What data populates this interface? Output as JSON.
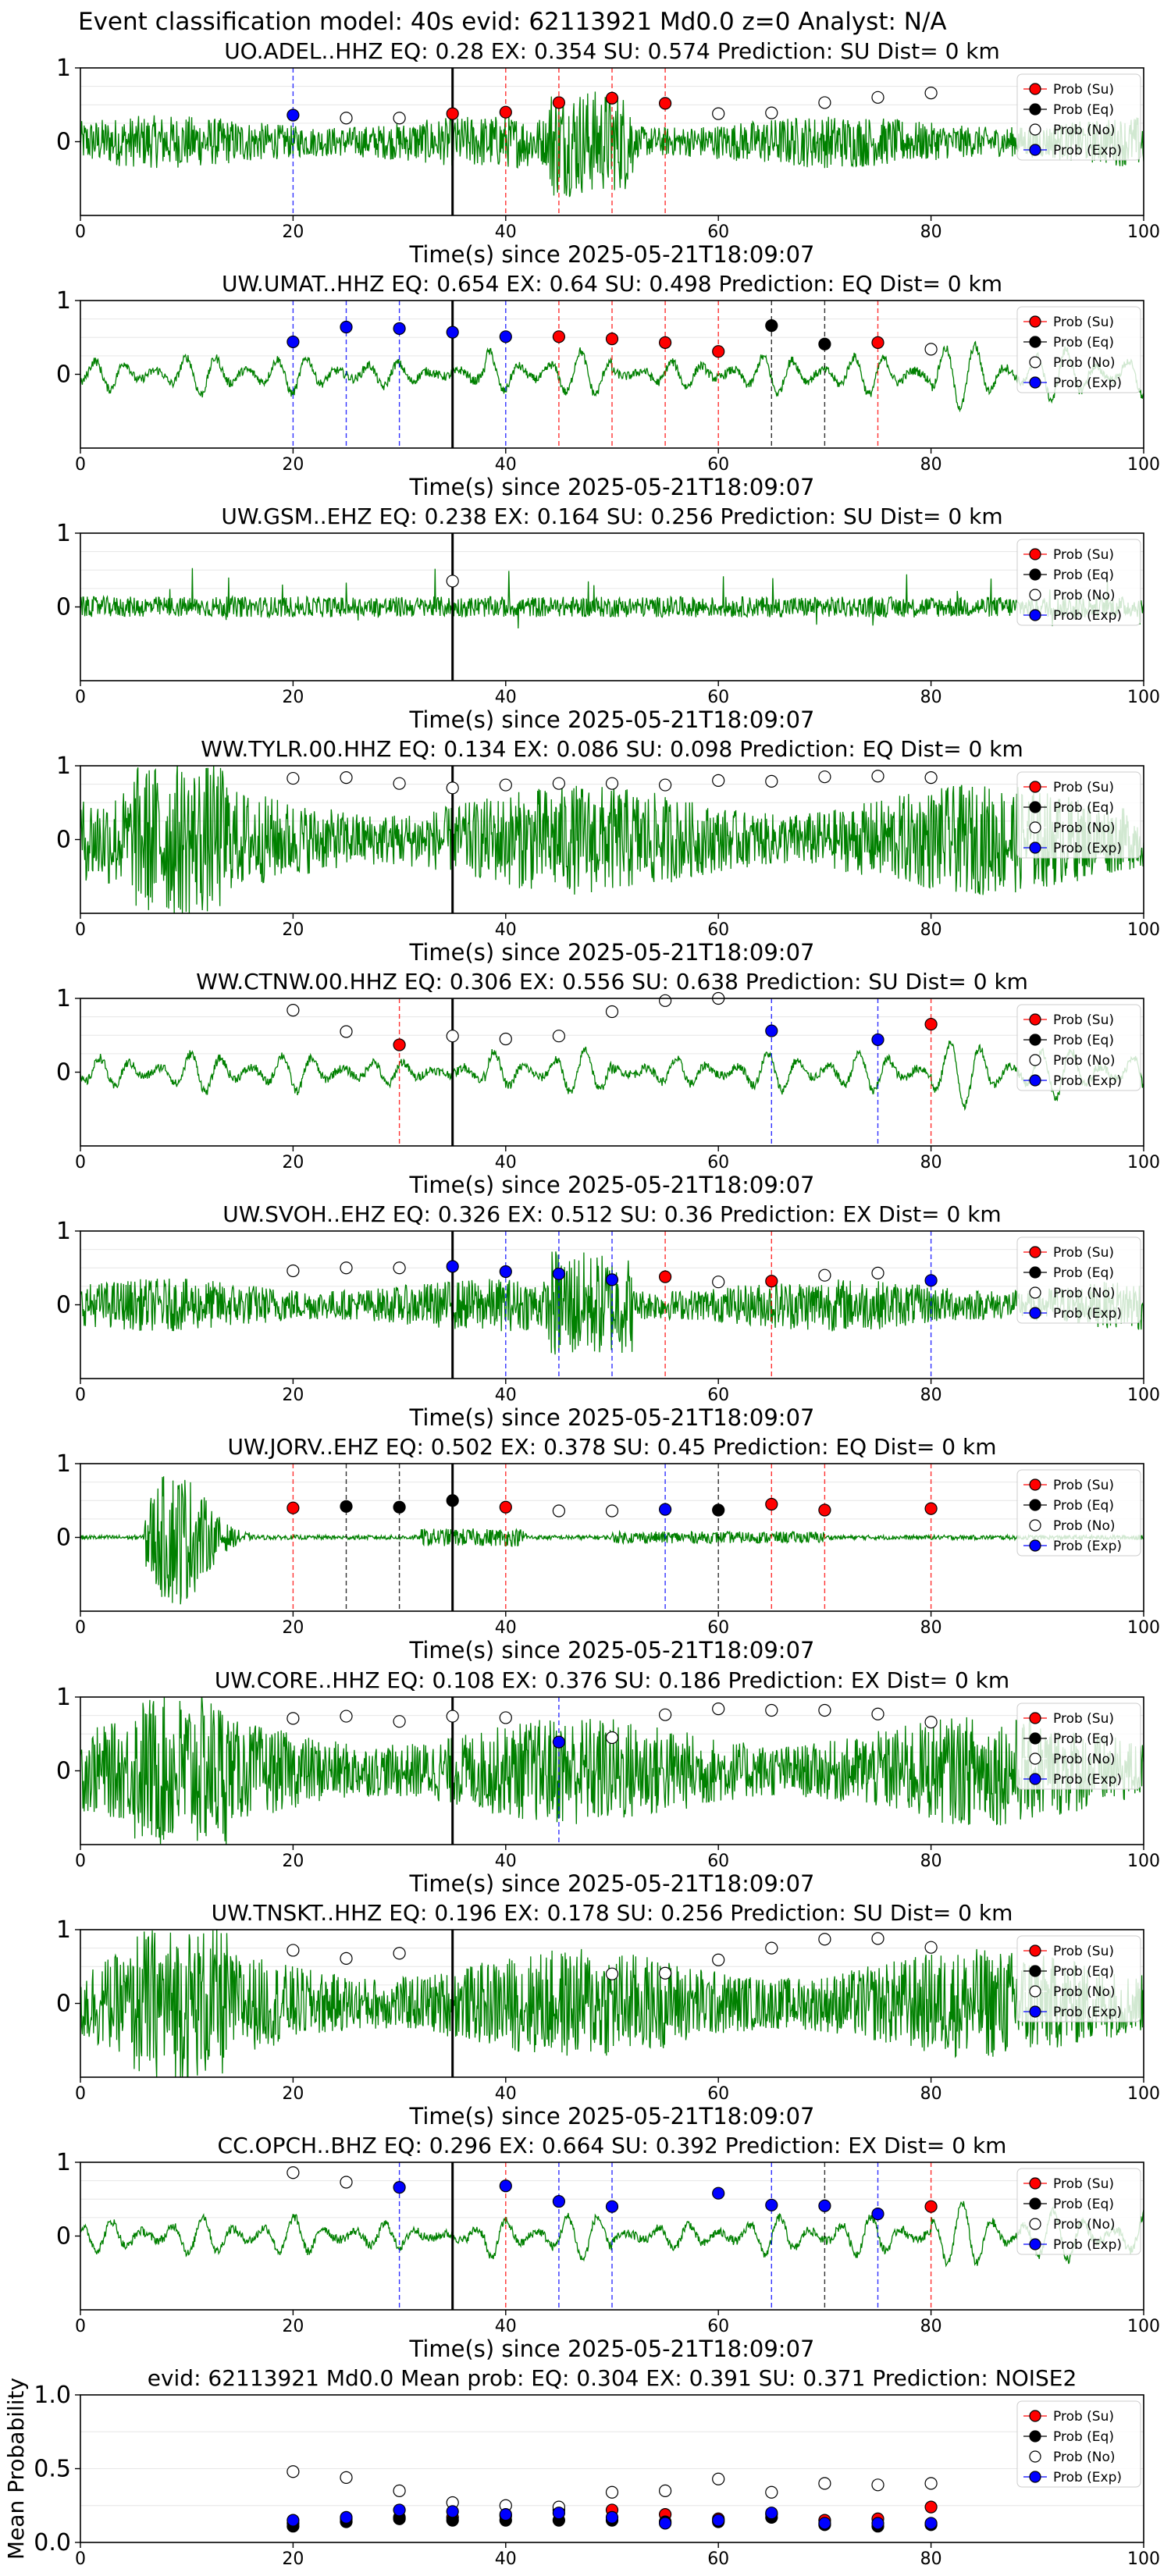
{
  "figure": {
    "suptitle": "Event classification model: 40s evid: 62113921 Md0.0 z=0 Analyst: N/A",
    "xlabel": "Time(s) since 2025-05-21T18:09:07"
  },
  "legend_labels": [
    "Prob (Su)",
    "Prob (Eq)",
    "Prob (No)",
    "Prob (Exp)"
  ],
  "colors": {
    "Su": "#ff0000",
    "Eq": "#000000",
    "No": "#ffffff",
    "Exp": "#0000ff",
    "waveform": "#008000",
    "vline_su": "#ff0000",
    "vline_eq": "#000000",
    "vline_exp": "#0000ff",
    "event_line": "#000000"
  },
  "chart_data": [
    {
      "type": "line",
      "title": "UO.ADEL..HHZ   EQ: 0.28  EX: 0.354  SU: 0.574   Prediction: SU    Dist= 0 km",
      "xlim": [
        0,
        100
      ],
      "ylim": [
        -1,
        1
      ],
      "xticks": [
        "0",
        "20",
        "40",
        "60",
        "80",
        "100"
      ],
      "yticks": [
        "1",
        "0"
      ],
      "event_time": 35,
      "waveform_style": "dense",
      "points": [
        [
          20,
          "Exp",
          0.36
        ],
        [
          25,
          "No",
          0.32
        ],
        [
          30,
          "No",
          0.32
        ],
        [
          35,
          "Su",
          0.38
        ],
        [
          40,
          "Su",
          0.4
        ],
        [
          45,
          "Su",
          0.53
        ],
        [
          50,
          "Su",
          0.59
        ],
        [
          55,
          "Su",
          0.52
        ],
        [
          60,
          "No",
          0.38
        ],
        [
          65,
          "No",
          0.39
        ],
        [
          70,
          "No",
          0.53
        ],
        [
          75,
          "No",
          0.6
        ],
        [
          80,
          "No",
          0.66
        ]
      ],
      "vlines": [
        [
          20,
          "Exp"
        ],
        [
          40,
          "Su"
        ],
        [
          45,
          "Su"
        ],
        [
          50,
          "Su"
        ],
        [
          55,
          "Su"
        ]
      ]
    },
    {
      "type": "line",
      "title": "UW.UMAT..HHZ   EQ: 0.654  EX: 0.64  SU: 0.498   Prediction: EQ    Dist= 0 km",
      "xlim": [
        0,
        100
      ],
      "ylim": [
        -1,
        1
      ],
      "xticks": [
        "0",
        "20",
        "40",
        "60",
        "80",
        "100"
      ],
      "yticks": [
        "1",
        "0"
      ],
      "event_time": 35,
      "waveform_style": "smooth",
      "points": [
        [
          20,
          "Exp",
          0.44
        ],
        [
          25,
          "Exp",
          0.64
        ],
        [
          30,
          "Exp",
          0.62
        ],
        [
          35,
          "Exp",
          0.57
        ],
        [
          40,
          "Exp",
          0.51
        ],
        [
          45,
          "Su",
          0.51
        ],
        [
          50,
          "Su",
          0.48
        ],
        [
          55,
          "Su",
          0.43
        ],
        [
          60,
          "Su",
          0.31
        ],
        [
          65,
          "Eq",
          0.66
        ],
        [
          70,
          "Eq",
          0.41
        ],
        [
          75,
          "Su",
          0.43
        ],
        [
          80,
          "No",
          0.34
        ]
      ],
      "vlines": [
        [
          20,
          "Exp"
        ],
        [
          25,
          "Exp"
        ],
        [
          30,
          "Exp"
        ],
        [
          40,
          "Exp"
        ],
        [
          45,
          "Su"
        ],
        [
          50,
          "Su"
        ],
        [
          55,
          "Su"
        ],
        [
          60,
          "Su"
        ],
        [
          65,
          "Eq"
        ],
        [
          70,
          "Eq"
        ],
        [
          75,
          "Su"
        ]
      ]
    },
    {
      "type": "line",
      "title": "UW.GSM..EHZ   EQ: 0.238  EX: 0.164  SU: 0.256   Prediction: SU    Dist= 0 km",
      "xlim": [
        0,
        100
      ],
      "ylim": [
        -1,
        1
      ],
      "xticks": [
        "0",
        "20",
        "40",
        "60",
        "80",
        "100"
      ],
      "yticks": [
        "1",
        "0"
      ],
      "event_time": 35,
      "waveform_style": "spiky",
      "points": [
        [
          35,
          "No",
          0.35
        ]
      ],
      "vlines": []
    },
    {
      "type": "line",
      "title": "WW.TYLR.00.HHZ   EQ: 0.134  EX: 0.086  SU: 0.098   Prediction: EQ    Dist= 0 km",
      "xlim": [
        0,
        100
      ],
      "ylim": [
        -1,
        1
      ],
      "xticks": [
        "0",
        "20",
        "40",
        "60",
        "80",
        "100"
      ],
      "yticks": [
        "1",
        "0"
      ],
      "event_time": 35,
      "waveform_style": "heavy",
      "points": [
        [
          20,
          "No",
          0.83
        ],
        [
          25,
          "No",
          0.84
        ],
        [
          30,
          "No",
          0.76
        ],
        [
          35,
          "No",
          0.7
        ],
        [
          40,
          "No",
          0.74
        ],
        [
          45,
          "No",
          0.76
        ],
        [
          50,
          "No",
          0.76
        ],
        [
          55,
          "No",
          0.74
        ],
        [
          60,
          "No",
          0.8
        ],
        [
          65,
          "No",
          0.79
        ],
        [
          70,
          "No",
          0.85
        ],
        [
          75,
          "No",
          0.86
        ],
        [
          80,
          "No",
          0.84
        ]
      ],
      "vlines": []
    },
    {
      "type": "line",
      "title": "WW.CTNW.00.HHZ   EQ: 0.306  EX: 0.556  SU: 0.638   Prediction: SU    Dist= 0 km",
      "xlim": [
        0,
        100
      ],
      "ylim": [
        -1,
        1
      ],
      "xticks": [
        "0",
        "20",
        "40",
        "60",
        "80",
        "100"
      ],
      "yticks": [
        "1",
        "0"
      ],
      "event_time": 35,
      "waveform_style": "smooth",
      "points": [
        [
          20,
          "No",
          0.84
        ],
        [
          25,
          "No",
          0.55
        ],
        [
          30,
          "Su",
          0.37
        ],
        [
          35,
          "No",
          0.49
        ],
        [
          40,
          "No",
          0.45
        ],
        [
          45,
          "No",
          0.49
        ],
        [
          50,
          "No",
          0.82
        ],
        [
          55,
          "No",
          0.97
        ],
        [
          60,
          "No",
          1.0
        ],
        [
          65,
          "Exp",
          0.56
        ],
        [
          75,
          "Exp",
          0.44
        ],
        [
          80,
          "Su",
          0.65
        ]
      ],
      "vlines": [
        [
          30,
          "Su"
        ],
        [
          65,
          "Exp"
        ],
        [
          75,
          "Exp"
        ],
        [
          80,
          "Su"
        ]
      ]
    },
    {
      "type": "line",
      "title": "UW.SVOH..EHZ   EQ: 0.326  EX: 0.512  SU: 0.36   Prediction: EX    Dist= 0 km",
      "xlim": [
        0,
        100
      ],
      "ylim": [
        -1,
        1
      ],
      "xticks": [
        "0",
        "20",
        "40",
        "60",
        "80",
        "100"
      ],
      "yticks": [
        "1",
        "0"
      ],
      "event_time": 35,
      "waveform_style": "dense",
      "points": [
        [
          20,
          "No",
          0.46
        ],
        [
          25,
          "No",
          0.5
        ],
        [
          30,
          "No",
          0.5
        ],
        [
          35,
          "Exp",
          0.52
        ],
        [
          40,
          "Exp",
          0.45
        ],
        [
          45,
          "Exp",
          0.42
        ],
        [
          50,
          "Exp",
          0.34
        ],
        [
          55,
          "Su",
          0.38
        ],
        [
          60,
          "No",
          0.31
        ],
        [
          65,
          "Su",
          0.32
        ],
        [
          70,
          "No",
          0.4
        ],
        [
          75,
          "No",
          0.43
        ],
        [
          80,
          "Exp",
          0.33
        ]
      ],
      "vlines": [
        [
          40,
          "Exp"
        ],
        [
          45,
          "Exp"
        ],
        [
          50,
          "Exp"
        ],
        [
          55,
          "Su"
        ],
        [
          65,
          "Su"
        ],
        [
          80,
          "Exp"
        ]
      ]
    },
    {
      "type": "line",
      "title": "UW.JORV..EHZ   EQ: 0.502  EX: 0.378  SU: 0.45   Prediction: EQ    Dist= 0 km",
      "xlim": [
        0,
        100
      ],
      "ylim": [
        -1,
        1
      ],
      "xticks": [
        "0",
        "20",
        "40",
        "60",
        "80",
        "100"
      ],
      "yticks": [
        "1",
        "0"
      ],
      "event_time": 35,
      "waveform_style": "burst",
      "points": [
        [
          20,
          "Su",
          0.4
        ],
        [
          25,
          "Eq",
          0.42
        ],
        [
          30,
          "Eq",
          0.41
        ],
        [
          35,
          "Eq",
          0.5
        ],
        [
          40,
          "Su",
          0.41
        ],
        [
          45,
          "No",
          0.36
        ],
        [
          50,
          "No",
          0.36
        ],
        [
          55,
          "Exp",
          0.38
        ],
        [
          60,
          "Eq",
          0.37
        ],
        [
          65,
          "Su",
          0.45
        ],
        [
          70,
          "Su",
          0.37
        ],
        [
          80,
          "Su",
          0.39
        ]
      ],
      "vlines": [
        [
          20,
          "Su"
        ],
        [
          25,
          "Eq"
        ],
        [
          30,
          "Eq"
        ],
        [
          40,
          "Su"
        ],
        [
          55,
          "Exp"
        ],
        [
          60,
          "Eq"
        ],
        [
          65,
          "Su"
        ],
        [
          70,
          "Su"
        ],
        [
          80,
          "Su"
        ]
      ]
    },
    {
      "type": "line",
      "title": "UW.CORE..HHZ   EQ: 0.108  EX: 0.376  SU: 0.186   Prediction: EX    Dist= 0 km",
      "xlim": [
        0,
        100
      ],
      "ylim": [
        -1,
        1
      ],
      "xticks": [
        "0",
        "20",
        "40",
        "60",
        "80",
        "100"
      ],
      "yticks": [
        "1",
        "0"
      ],
      "event_time": 35,
      "waveform_style": "heavy",
      "points": [
        [
          20,
          "No",
          0.71
        ],
        [
          25,
          "No",
          0.74
        ],
        [
          30,
          "No",
          0.67
        ],
        [
          35,
          "No",
          0.74
        ],
        [
          40,
          "No",
          0.72
        ],
        [
          45,
          "Exp",
          0.39
        ],
        [
          50,
          "No",
          0.45
        ],
        [
          55,
          "No",
          0.76
        ],
        [
          60,
          "No",
          0.84
        ],
        [
          65,
          "No",
          0.82
        ],
        [
          70,
          "No",
          0.82
        ],
        [
          75,
          "No",
          0.77
        ],
        [
          80,
          "No",
          0.66
        ]
      ],
      "vlines": [
        [
          45,
          "Exp"
        ]
      ]
    },
    {
      "type": "line",
      "title": "UW.TNSKT..HHZ   EQ: 0.196  EX: 0.178  SU: 0.256   Prediction: SU    Dist= 0 km",
      "xlim": [
        0,
        100
      ],
      "ylim": [
        -1,
        1
      ],
      "xticks": [
        "0",
        "20",
        "40",
        "60",
        "80",
        "100"
      ],
      "yticks": [
        "1",
        "0"
      ],
      "event_time": 35,
      "waveform_style": "heavy",
      "points": [
        [
          20,
          "No",
          0.72
        ],
        [
          25,
          "No",
          0.61
        ],
        [
          30,
          "No",
          0.68
        ],
        [
          50,
          "No",
          0.4
        ],
        [
          55,
          "No",
          0.41
        ],
        [
          60,
          "No",
          0.59
        ],
        [
          65,
          "No",
          0.75
        ],
        [
          70,
          "No",
          0.87
        ],
        [
          75,
          "No",
          0.88
        ],
        [
          80,
          "No",
          0.76
        ]
      ],
      "vlines": []
    },
    {
      "type": "line",
      "title": "CC.OPCH..BHZ   EQ: 0.296  EX: 0.664  SU: 0.392   Prediction: EX    Dist= 0 km",
      "xlim": [
        0,
        100
      ],
      "ylim": [
        -1,
        1
      ],
      "xticks": [
        "0",
        "20",
        "40",
        "60",
        "80",
        "100"
      ],
      "yticks": [
        "1",
        "0"
      ],
      "event_time": 35,
      "waveform_style": "smooth",
      "points": [
        [
          20,
          "No",
          0.86
        ],
        [
          25,
          "No",
          0.73
        ],
        [
          30,
          "Exp",
          0.66
        ],
        [
          40,
          "Exp",
          0.68
        ],
        [
          45,
          "Exp",
          0.47
        ],
        [
          50,
          "Exp",
          0.4
        ],
        [
          60,
          "Exp",
          0.58
        ],
        [
          65,
          "Exp",
          0.42
        ],
        [
          70,
          "Exp",
          0.41
        ],
        [
          75,
          "Exp",
          0.3
        ],
        [
          80,
          "Su",
          0.4
        ]
      ],
      "vlines": [
        [
          30,
          "Exp"
        ],
        [
          40,
          "Su"
        ],
        [
          45,
          "Exp"
        ],
        [
          50,
          "Exp"
        ],
        [
          65,
          "Exp"
        ],
        [
          70,
          "Eq"
        ],
        [
          75,
          "Exp"
        ],
        [
          80,
          "Su"
        ]
      ]
    },
    {
      "type": "scatter",
      "title": "evid: 62113921  Md0.0   Mean prob:   EQ: 0.304  EX: 0.391  SU: 0.371   Prediction: NOISE2",
      "ylabel": "Mean Probability",
      "xlim": [
        0,
        100
      ],
      "ylim": [
        0,
        1
      ],
      "xticks": [
        "0",
        "20",
        "40",
        "60",
        "80",
        "100"
      ],
      "yticks": [
        "1.0",
        "0.5",
        "0.0"
      ],
      "series": [
        {
          "name": "Prob (Su)",
          "x": [
            20,
            25,
            30,
            35,
            40,
            45,
            50,
            55,
            60,
            65,
            70,
            75,
            80
          ],
          "y": [
            0.13,
            0.16,
            0.17,
            0.17,
            0.18,
            0.22,
            0.22,
            0.19,
            0.16,
            0.19,
            0.15,
            0.16,
            0.24
          ]
        },
        {
          "name": "Prob (Eq)",
          "x": [
            20,
            25,
            30,
            35,
            40,
            45,
            50,
            55,
            60,
            65,
            70,
            75,
            80
          ],
          "y": [
            0.11,
            0.14,
            0.16,
            0.15,
            0.15,
            0.15,
            0.15,
            0.14,
            0.14,
            0.17,
            0.12,
            0.11,
            0.12
          ]
        },
        {
          "name": "Prob (No)",
          "x": [
            20,
            25,
            30,
            35,
            40,
            45,
            50,
            55,
            60,
            65,
            70,
            75,
            80
          ],
          "y": [
            0.48,
            0.44,
            0.35,
            0.27,
            0.25,
            0.24,
            0.34,
            0.35,
            0.43,
            0.34,
            0.4,
            0.39,
            0.4
          ]
        },
        {
          "name": "Prob (Exp)",
          "x": [
            20,
            25,
            30,
            35,
            40,
            45,
            50,
            55,
            60,
            65,
            70,
            75,
            80
          ],
          "y": [
            0.15,
            0.17,
            0.22,
            0.21,
            0.19,
            0.2,
            0.17,
            0.13,
            0.15,
            0.2,
            0.13,
            0.13,
            0.13
          ]
        }
      ]
    }
  ]
}
